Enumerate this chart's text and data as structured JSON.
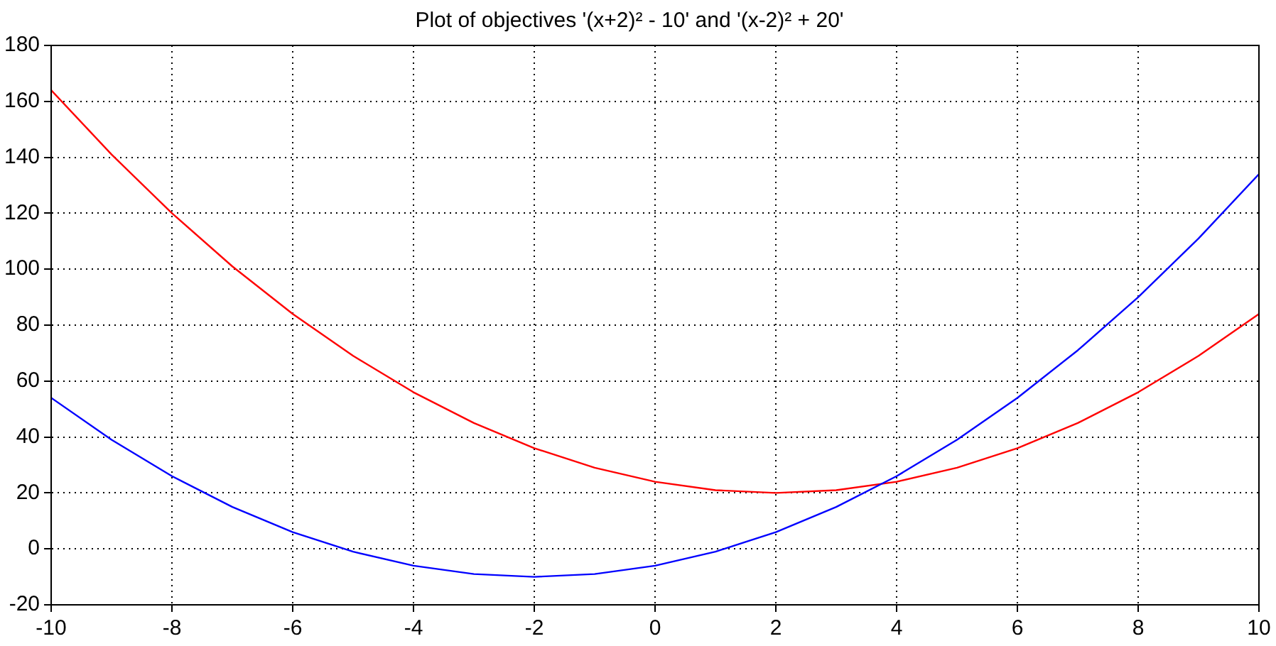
{
  "chart_data": {
    "type": "line",
    "title": "Plot of objectives '(x+2)² - 10' and '(x-2)² + 20'",
    "x": [
      -10,
      -9,
      -8,
      -7,
      -6,
      -5,
      -4,
      -3,
      -2,
      -1,
      0,
      1,
      2,
      3,
      4,
      5,
      6,
      7,
      8,
      9,
      10
    ],
    "series": [
      {
        "color": "#0000ff",
        "values": [
          54,
          39,
          26,
          15,
          6,
          -1,
          -6,
          -9,
          -10,
          -9,
          -6,
          -1,
          6,
          15,
          26,
          39,
          54,
          71,
          90,
          111,
          134
        ]
      },
      {
        "color": "#ff0000",
        "values": [
          164,
          141,
          120,
          101,
          84,
          69,
          56,
          45,
          36,
          29,
          24,
          21,
          20,
          21,
          24,
          29,
          36,
          45,
          56,
          69,
          84
        ]
      }
    ],
    "xlim": [
      -10,
      10
    ],
    "xticks": [
      -10,
      -8,
      -6,
      -4,
      -2,
      0,
      2,
      4,
      6,
      8,
      10
    ],
    "ylim": [
      -20,
      180
    ],
    "yticks": [
      -20,
      0,
      20,
      40,
      60,
      80,
      100,
      120,
      140,
      160,
      180
    ],
    "grid": true,
    "legend": false,
    "marker": "none",
    "line_style": "solid"
  }
}
